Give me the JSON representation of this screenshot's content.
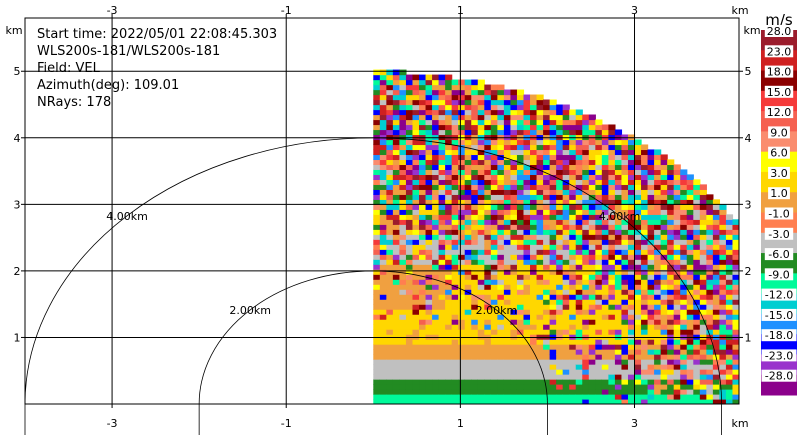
{
  "chart_data": {
    "type": "heatmap",
    "subtype": "radar-ppi-sector",
    "info_lines": [
      "Start time: 2022/05/01 22:08:45.303",
      "WLS200s-181/WLS200s-181",
      "Field: VEL",
      "Azimuth(deg): 109.01",
      "NRays: 178"
    ],
    "axis_unit_label": "km",
    "x_ticks": [
      {
        "value": -3,
        "label": "-3"
      },
      {
        "value": -1,
        "label": "-1"
      },
      {
        "value": 1,
        "label": "1"
      },
      {
        "value": 3,
        "label": "3"
      }
    ],
    "y_ticks": [
      {
        "value": 1,
        "label": "1"
      },
      {
        "value": 2,
        "label": "2"
      },
      {
        "value": 3,
        "label": "3"
      },
      {
        "value": 4,
        "label": "4"
      },
      {
        "value": 5,
        "label": "5"
      }
    ],
    "xlim": [
      -4.0,
      4.2
    ],
    "ylim": [
      0,
      5.8
    ],
    "grid": true,
    "range_rings": [
      {
        "radius_km": 2,
        "label": "2.00km"
      },
      {
        "radius_km": 4,
        "label": "4.00km"
      }
    ],
    "sector": {
      "max_range_km": 5.0,
      "azimuth_start_deg": 0,
      "azimuth_end_deg": 90
    },
    "colorbar": {
      "unit": "m/s",
      "ticks": [
        "28.0",
        "23.0",
        "18.0",
        "15.0",
        "12.0",
        "9.0",
        "6.0",
        "3.0",
        "1.0",
        "-1.0",
        "-3.0",
        "-6.0",
        "-9.0",
        "-12.0",
        "-15.0",
        "-18.0",
        "-23.0",
        "-28.0"
      ],
      "colors": [
        "#9b1c2c",
        "#cf2020",
        "#8b0000",
        "#f53a3a",
        "#f56050",
        "#fa8c6e",
        "#ffff00",
        "#ffd700",
        "#f0a040",
        "#ff7f50",
        "#c0c0c0",
        "#228b22",
        "#00fa9a",
        "#00ced1",
        "#1e90ff",
        "#0000ff",
        "#9932cc",
        "#8b008b"
      ]
    }
  }
}
